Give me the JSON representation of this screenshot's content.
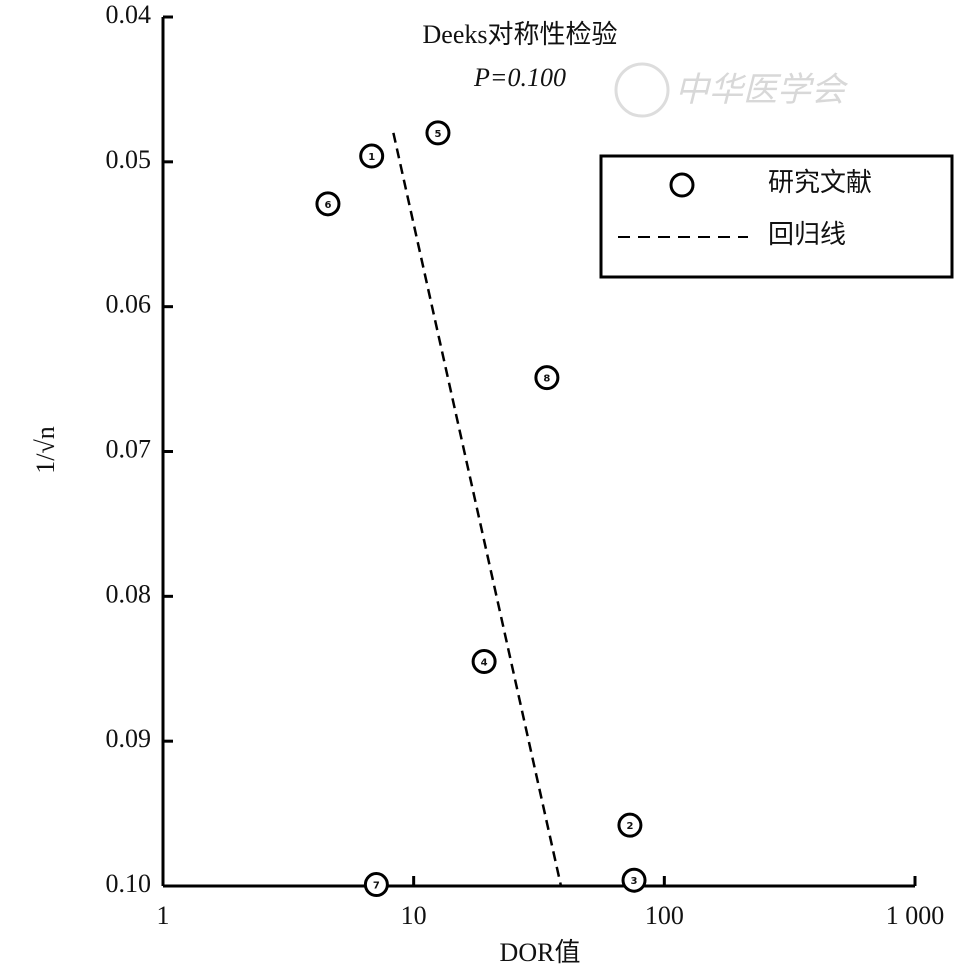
{
  "chart_data": {
    "type": "scatter",
    "title": "Deeks对称性检验",
    "subtitle": "P=0.100",
    "watermark": "中华医学会",
    "x_label": "DOR值",
    "y_label": "1/√n",
    "x_log": true,
    "y_inverted": true,
    "xlim": [
      1,
      1000
    ],
    "ylim": [
      0.04,
      0.1
    ],
    "xticks": [
      1,
      10,
      100,
      {
        "value": 1000,
        "label": "1 000"
      }
    ],
    "yticks": [
      0.04,
      0.05,
      0.06,
      0.07,
      0.08,
      0.09,
      {
        "value": 0.1,
        "label": "0.10"
      }
    ],
    "legend_position": "upper right",
    "series": [
      {
        "name": "研究文献",
        "color": "#000000",
        "labels": [
          "1",
          "2",
          "3",
          "4",
          "5",
          "6",
          "7",
          "8"
        ],
        "x": [
          6.8,
          72.9,
          75.7,
          19.1,
          12.5,
          4.55,
          7.1,
          34.0
        ],
        "values": [
          0.0496,
          0.0958,
          0.0996,
          0.0845,
          0.048,
          0.0529,
          0.0999,
          0.0649
        ]
      },
      {
        "name": "回归线",
        "color": "#000000",
        "line": "dashed",
        "x": [
          8.3,
          38.7
        ],
        "values": [
          0.048,
          0.1
        ]
      }
    ]
  }
}
